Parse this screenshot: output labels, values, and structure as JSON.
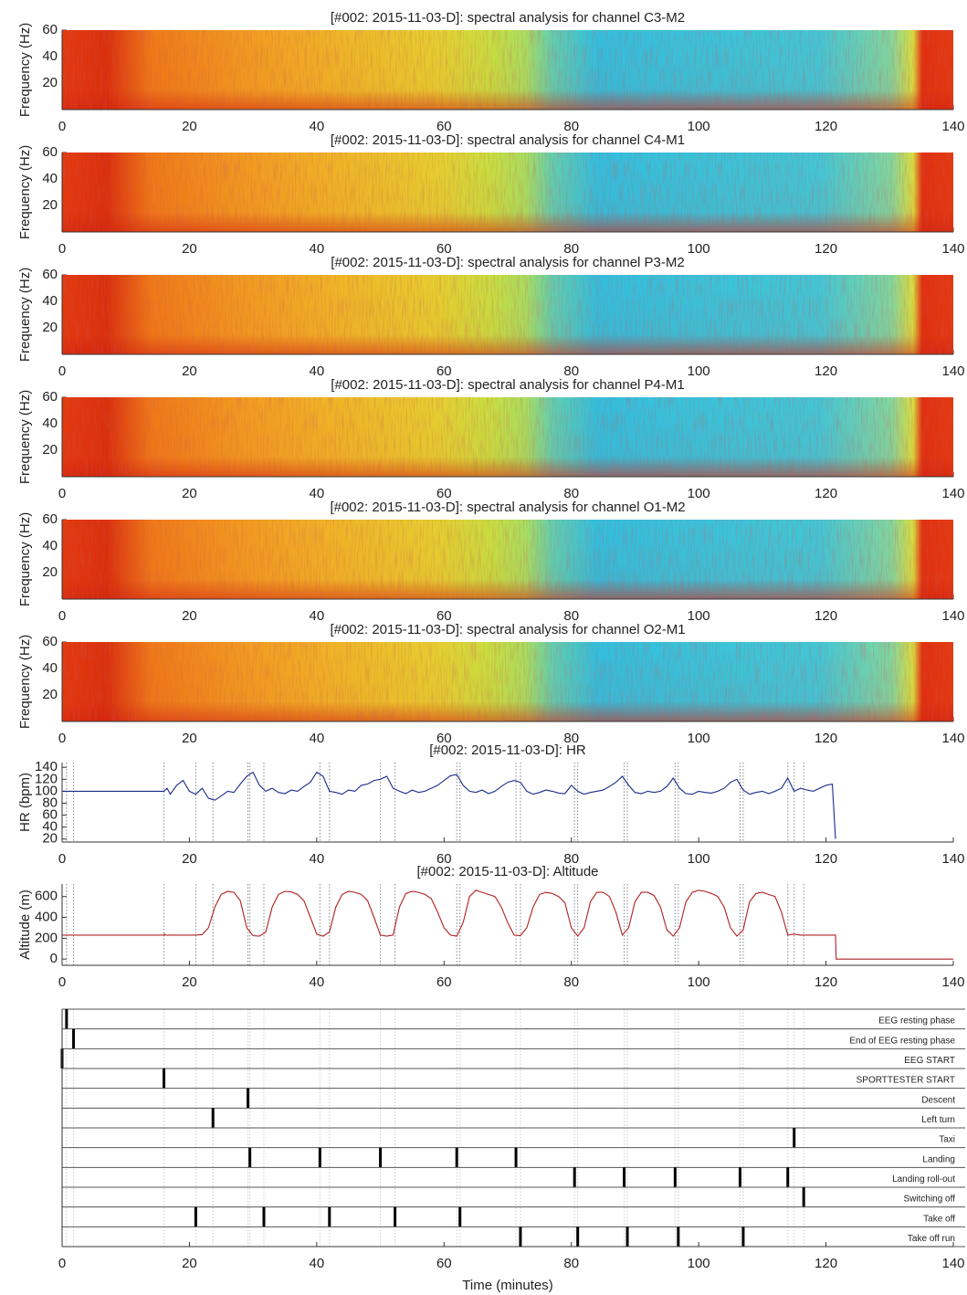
{
  "chart_data": [
    {
      "type": "spectrogram",
      "title": "[#002: 2015-11-03-D]: spectral analysis for channel C3-M2",
      "ylabel": "Frequency (Hz)",
      "colormap": "jet",
      "xlim": [
        0,
        140
      ],
      "ylim": [
        0,
        60
      ],
      "xticks": [
        0,
        20,
        40,
        60,
        80,
        100,
        120,
        140
      ],
      "yticks": [
        20,
        40,
        60
      ]
    },
    {
      "type": "spectrogram",
      "title": "[#002: 2015-11-03-D]: spectral analysis for channel C4-M1",
      "ylabel": "Frequency (Hz)",
      "colormap": "jet",
      "xlim": [
        0,
        140
      ],
      "ylim": [
        0,
        60
      ],
      "xticks": [
        0,
        20,
        40,
        60,
        80,
        100,
        120,
        140
      ],
      "yticks": [
        20,
        40,
        60
      ]
    },
    {
      "type": "spectrogram",
      "title": "[#002: 2015-11-03-D]: spectral analysis for channel P3-M2",
      "ylabel": "Frequency (Hz)",
      "colormap": "jet",
      "xlim": [
        0,
        140
      ],
      "ylim": [
        0,
        60
      ],
      "xticks": [
        0,
        20,
        40,
        60,
        80,
        100,
        120,
        140
      ],
      "yticks": [
        20,
        40,
        60
      ]
    },
    {
      "type": "spectrogram",
      "title": "[#002: 2015-11-03-D]: spectral analysis for channel P4-M1",
      "ylabel": "Frequency (Hz)",
      "colormap": "jet",
      "xlim": [
        0,
        140
      ],
      "ylim": [
        0,
        60
      ],
      "xticks": [
        0,
        20,
        40,
        60,
        80,
        100,
        120,
        140
      ],
      "yticks": [
        20,
        40,
        60
      ]
    },
    {
      "type": "spectrogram",
      "title": "[#002: 2015-11-03-D]: spectral analysis for channel O1-M2",
      "ylabel": "Frequency (Hz)",
      "colormap": "jet",
      "xlim": [
        0,
        140
      ],
      "ylim": [
        0,
        60
      ],
      "xticks": [
        0,
        20,
        40,
        60,
        80,
        100,
        120,
        140
      ],
      "yticks": [
        20,
        40,
        60
      ]
    },
    {
      "type": "spectrogram",
      "title": "[#002: 2015-11-03-D]: spectral analysis for channel O2-M1",
      "ylabel": "Frequency (Hz)",
      "colormap": "jet",
      "xlim": [
        0,
        140
      ],
      "ylim": [
        0,
        60
      ],
      "xticks": [
        0,
        20,
        40,
        60,
        80,
        100,
        120,
        140
      ],
      "yticks": [
        20,
        40,
        60
      ]
    },
    {
      "type": "line",
      "title": "[#002: 2015-11-03-D]: HR",
      "ylabel": "HR (bpm)",
      "xlim": [
        0,
        140
      ],
      "ylim": [
        15,
        148
      ],
      "xticks": [
        0,
        20,
        40,
        60,
        80,
        100,
        120,
        140
      ],
      "yticks": [
        20,
        40,
        60,
        80,
        100,
        120,
        140
      ],
      "x": [
        0,
        16,
        16.5,
        17,
        18,
        19,
        20,
        21,
        22,
        23,
        24,
        25,
        26,
        27,
        28,
        29,
        30,
        31,
        32,
        33,
        34,
        35,
        36,
        37,
        38,
        39,
        40,
        41,
        42,
        43,
        44,
        45,
        46,
        47,
        48,
        49,
        50,
        51,
        52,
        53,
        54,
        55,
        56,
        57,
        58,
        59,
        60,
        61,
        62,
        63,
        64,
        65,
        66,
        67,
        68,
        69,
        70,
        71,
        72,
        73,
        74,
        75,
        76,
        77,
        78,
        79,
        80,
        81,
        82,
        83,
        84,
        85,
        86,
        87,
        88,
        89,
        90,
        91,
        92,
        93,
        94,
        95,
        96,
        97,
        98,
        99,
        100,
        101,
        102,
        103,
        104,
        105,
        106,
        107,
        108,
        109,
        110,
        111,
        112,
        113,
        114,
        115,
        116,
        117,
        118,
        119,
        120,
        121,
        121.5
      ],
      "series": [
        {
          "color": "#1a2a8c",
          "values": [
            100,
            100,
            105,
            95,
            110,
            118,
            100,
            95,
            105,
            88,
            85,
            92,
            100,
            98,
            112,
            125,
            132,
            110,
            100,
            105,
            98,
            96,
            102,
            100,
            108,
            115,
            132,
            125,
            100,
            98,
            95,
            102,
            100,
            110,
            112,
            118,
            120,
            125,
            105,
            100,
            96,
            102,
            98,
            100,
            105,
            110,
            118,
            126,
            128,
            110,
            100,
            98,
            102,
            96,
            100,
            108,
            115,
            118,
            115,
            100,
            95,
            98,
            102,
            100,
            97,
            96,
            110,
            100,
            95,
            98,
            100,
            102,
            108,
            115,
            125,
            110,
            98,
            96,
            100,
            98,
            100,
            108,
            122,
            105,
            96,
            95,
            100,
            98,
            97,
            100,
            105,
            115,
            120,
            102,
            95,
            98,
            100,
            96,
            100,
            105,
            122,
            100,
            105,
            102,
            100,
            105,
            110,
            112,
            20
          ]
        }
      ]
    },
    {
      "type": "line",
      "title": "[#002: 2015-11-03-D]: Altitude",
      "ylabel": "Altitude (m)",
      "xlim": [
        0,
        140
      ],
      "ylim": [
        -60,
        720
      ],
      "xticks": [
        0,
        20,
        40,
        60,
        80,
        100,
        120,
        140
      ],
      "yticks": [
        0,
        200,
        400,
        600
      ],
      "x": [
        0,
        16,
        16.1,
        16.2,
        21,
        22,
        23,
        24,
        25,
        26,
        27,
        28,
        29,
        30,
        31,
        32,
        33,
        34,
        35,
        36,
        37,
        38,
        39,
        40,
        41,
        42,
        43,
        44,
        45,
        46,
        47,
        48,
        49,
        50,
        51,
        52,
        53,
        54,
        55,
        56,
        57,
        58,
        59,
        60,
        61,
        62,
        63,
        64,
        65,
        66,
        67,
        68,
        69,
        70,
        71,
        72,
        73,
        74,
        75,
        76,
        77,
        78,
        79,
        80,
        81,
        82,
        83,
        84,
        85,
        86,
        87,
        88,
        89,
        90,
        91,
        92,
        93,
        94,
        95,
        96,
        97,
        98,
        99,
        100,
        101,
        102,
        103,
        104,
        105,
        106,
        107,
        108,
        109,
        110,
        111,
        112,
        113,
        114,
        115,
        116,
        117,
        121.5,
        121.6,
        140
      ],
      "series": [
        {
          "color": "#b02020",
          "values": [
            230,
            230,
            240,
            230,
            230,
            235,
            300,
            500,
            620,
            650,
            640,
            560,
            300,
            225,
            220,
            260,
            500,
            620,
            650,
            645,
            620,
            560,
            400,
            240,
            220,
            260,
            500,
            620,
            650,
            640,
            620,
            560,
            400,
            230,
            220,
            230,
            500,
            630,
            650,
            640,
            620,
            580,
            450,
            300,
            230,
            220,
            350,
            600,
            660,
            640,
            620,
            600,
            500,
            350,
            230,
            225,
            300,
            500,
            620,
            640,
            630,
            600,
            540,
            300,
            220,
            300,
            550,
            640,
            640,
            600,
            450,
            230,
            300,
            550,
            640,
            640,
            610,
            500,
            280,
            220,
            300,
            550,
            640,
            660,
            650,
            630,
            600,
            500,
            300,
            220,
            280,
            550,
            630,
            640,
            620,
            600,
            450,
            230,
            240,
            230,
            230,
            230,
            0,
            0
          ]
        }
      ]
    },
    {
      "type": "event",
      "xlabel": "Time (minutes)",
      "xlim": [
        0,
        140
      ],
      "xticks": [
        0,
        20,
        40,
        60,
        80,
        100,
        120,
        140
      ],
      "rows": [
        {
          "name": "EEG resting phase",
          "times": [
            0.7
          ]
        },
        {
          "name": "End of EEG resting phase",
          "times": [
            1.8
          ]
        },
        {
          "name": "EEG START",
          "times": [
            0
          ]
        },
        {
          "name": "SPORTTESTER START",
          "times": [
            16
          ]
        },
        {
          "name": "Descent",
          "times": [
            29.2
          ]
        },
        {
          "name": "Left turn",
          "times": [
            23.7
          ]
        },
        {
          "name": "Taxi",
          "times": [
            115
          ]
        },
        {
          "name": "Landing",
          "times": [
            29.5,
            40.5,
            50,
            62,
            71.3
          ]
        },
        {
          "name": "Landing roll-out",
          "times": [
            80.5,
            88.3,
            96.3,
            106.5,
            114
          ]
        },
        {
          "name": "Switching off",
          "times": [
            116.5
          ]
        },
        {
          "name": "Take off",
          "times": [
            21,
            31.7,
            42,
            52.3,
            62.5
          ]
        },
        {
          "name": "Take off run",
          "times": [
            72,
            81,
            88.8,
            96.8,
            107
          ]
        }
      ]
    }
  ]
}
